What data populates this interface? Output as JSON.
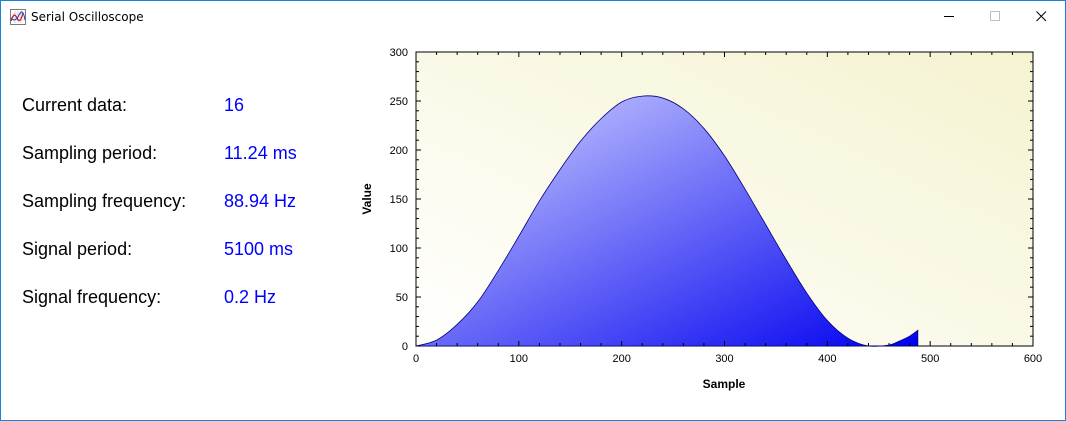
{
  "window": {
    "title": "Serial Oscilloscope",
    "app_icon": "oscilloscope-icon",
    "controls": [
      "minimize-icon",
      "maximize-icon",
      "close-icon"
    ]
  },
  "info": [
    {
      "label": "Current data:",
      "value": "16"
    },
    {
      "label": "Sampling period:",
      "value": "11.24 ms"
    },
    {
      "label": "Sampling frequency:",
      "value": "88.94 Hz"
    },
    {
      "label": "Signal period:",
      "value": "5100 ms"
    },
    {
      "label": "Signal frequency:",
      "value": "0.2 Hz"
    }
  ],
  "colors": {
    "value_text": "#0000ff",
    "plot_background_light": "#ffffff",
    "plot_background_dark": "#f5f3d0",
    "fill_top": "#c8ccff",
    "fill_bottom": "#0000f0",
    "window_border": "#1883d7"
  },
  "chart_data": {
    "type": "area",
    "xlabel": "Sample",
    "ylabel": "Value",
    "xlim": [
      0,
      600
    ],
    "ylim": [
      0,
      300
    ],
    "xticks": [
      0,
      100,
      200,
      300,
      400,
      500,
      600
    ],
    "yticks": [
      0,
      50,
      100,
      150,
      200,
      250,
      300
    ],
    "grid": false,
    "x": [
      0,
      20,
      40,
      60,
      80,
      100,
      120,
      140,
      160,
      180,
      200,
      220,
      240,
      260,
      280,
      300,
      320,
      340,
      360,
      380,
      400,
      420,
      440,
      460,
      470,
      480,
      488
    ],
    "y": [
      0,
      6,
      22,
      45,
      77,
      112,
      148,
      180,
      209,
      232,
      249,
      255,
      253,
      242,
      222,
      194,
      160,
      124,
      88,
      54,
      26,
      8,
      0,
      1,
      5,
      10,
      16
    ]
  }
}
